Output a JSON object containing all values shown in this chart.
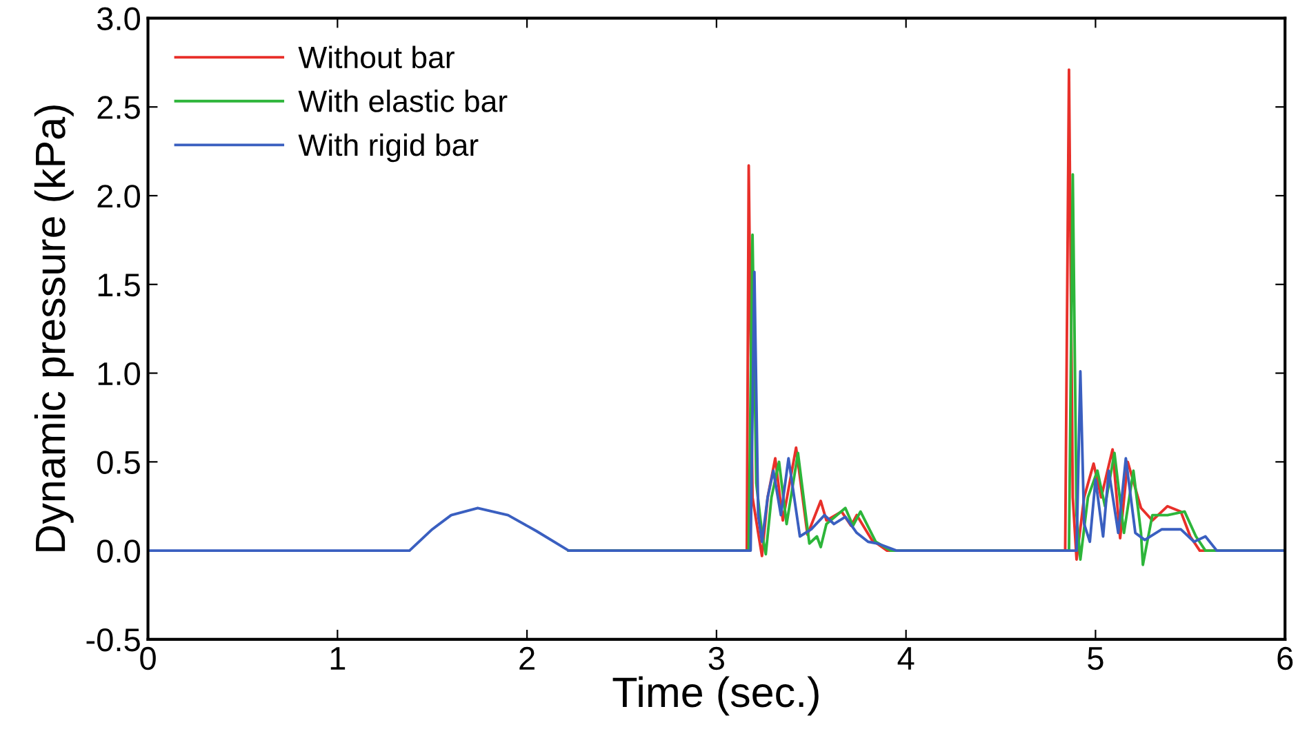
{
  "chart_data": {
    "type": "line",
    "xlabel": "Time (sec.)",
    "ylabel": "Dynamic pressure (kPa)",
    "xlim": [
      0,
      6
    ],
    "ylim": [
      -0.5,
      3.0
    ],
    "xticks": [
      0,
      1,
      2,
      3,
      4,
      5,
      6
    ],
    "yticks": [
      -0.5,
      {
        "value": 0,
        "label": "0.0"
      },
      0.5,
      {
        "value": 1,
        "label": "1.0"
      },
      1.5,
      {
        "value": 2,
        "label": "2.0"
      },
      2.5,
      {
        "value": 3,
        "label": "3.0"
      }
    ],
    "grid": false,
    "legend": "top left",
    "marker": "none",
    "line_style": "solid",
    "series": [
      {
        "name": "Without bar",
        "color": "#e8302a",
        "x": [
          2.22,
          3.16,
          3.17,
          3.19,
          3.22,
          3.24,
          3.27,
          3.31,
          3.35,
          3.42,
          3.48,
          3.55,
          3.58,
          3.66,
          3.71,
          3.74,
          3.82,
          3.9,
          4.84,
          4.86,
          4.88,
          4.9,
          4.94,
          4.99,
          5.03,
          5.09,
          5.13,
          5.17,
          5.24,
          5.3,
          5.38,
          5.45,
          5.5,
          5.55,
          6
        ],
        "values": [
          0,
          0,
          2.17,
          0.3,
          0.1,
          -0.03,
          0.3,
          0.52,
          0.17,
          0.58,
          0.09,
          0.28,
          0.17,
          0.22,
          0.14,
          0.2,
          0.06,
          0,
          0,
          2.71,
          0.3,
          -0.05,
          0.3,
          0.49,
          0.3,
          0.57,
          0.07,
          0.5,
          0.24,
          0.17,
          0.25,
          0.22,
          0.08,
          0,
          0
        ]
      },
      {
        "name": "With elastic bar",
        "color": "#2db53a",
        "x": [
          2.22,
          3.17,
          3.19,
          3.21,
          3.24,
          3.26,
          3.29,
          3.33,
          3.37,
          3.43,
          3.49,
          3.53,
          3.55,
          3.58,
          3.68,
          3.72,
          3.76,
          3.84,
          3.92,
          4.86,
          4.88,
          4.9,
          4.92,
          4.96,
          5.01,
          5.05,
          5.1,
          5.15,
          5.2,
          5.24,
          5.25,
          5.3,
          5.38,
          5.47,
          5.53,
          5.58,
          6
        ],
        "values": [
          0,
          0,
          1.78,
          0.38,
          0.1,
          -0.02,
          0.3,
          0.5,
          0.15,
          0.55,
          0.04,
          0.08,
          0.02,
          0.15,
          0.24,
          0.14,
          0.22,
          0.05,
          0,
          0,
          2.12,
          0.2,
          -0.05,
          0.3,
          0.45,
          0.25,
          0.55,
          0.1,
          0.45,
          0.1,
          -0.08,
          0.2,
          0.2,
          0.22,
          0.08,
          0,
          0
        ]
      },
      {
        "name": "With rigid bar",
        "color": "#3a5fc0",
        "x": [
          0,
          1.38,
          1.5,
          1.6,
          1.74,
          1.9,
          2.05,
          2.22,
          3.18,
          3.2,
          3.22,
          3.24,
          3.27,
          3.3,
          3.34,
          3.38,
          3.44,
          3.5,
          3.57,
          3.62,
          3.68,
          3.74,
          3.8,
          3.85,
          3.95,
          4.9,
          4.92,
          4.94,
          4.97,
          5.0,
          5.04,
          5.07,
          5.12,
          5.16,
          5.21,
          5.26,
          5.35,
          5.45,
          5.52,
          5.58,
          5.64,
          6
        ],
        "values": [
          0,
          0,
          0.12,
          0.2,
          0.24,
          0.2,
          0.11,
          0,
          0,
          1.57,
          0.2,
          0.05,
          0.3,
          0.45,
          0.2,
          0.52,
          0.08,
          0.12,
          0.2,
          0.15,
          0.19,
          0.1,
          0.05,
          0.04,
          0,
          0,
          1.01,
          0.15,
          0.05,
          0.4,
          0.08,
          0.45,
          0.1,
          0.52,
          0.1,
          0.06,
          0.12,
          0.12,
          0.05,
          0.08,
          0,
          0
        ]
      }
    ]
  }
}
